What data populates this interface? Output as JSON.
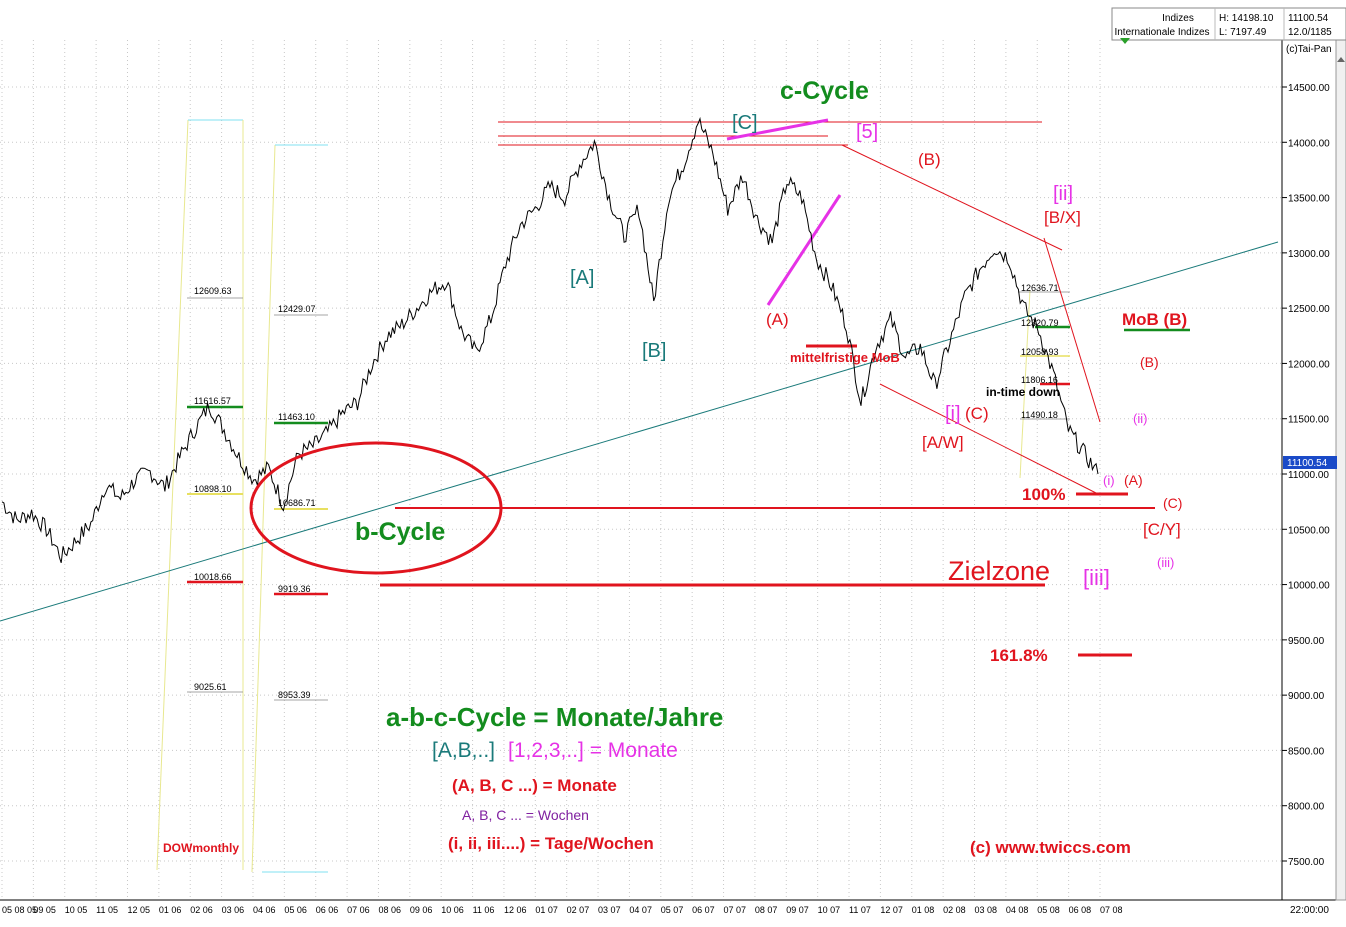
{
  "info_box": {
    "labels": [
      "Indizes",
      "Internationale Indizes"
    ],
    "hl": [
      "H: 14198.10",
      "L: 7197.49"
    ],
    "right": [
      "11100.54",
      "12.0/1185"
    ],
    "copyright": "(c)Tai-Pan"
  },
  "time_bar_right": "22:00:00",
  "chart_data": {
    "type": "line",
    "title": "",
    "xlabel": "",
    "ylabel": "",
    "ylim": [
      7197.49,
      14700
    ],
    "y_ticks": [
      7500,
      8000,
      8500,
      9000,
      9500,
      10000,
      10500,
      11000,
      11500,
      12000,
      12500,
      13000,
      13500,
      14000,
      14500
    ],
    "y_tick_labels": [
      "7500.00",
      "8000.00",
      "8500.00",
      "9000.00",
      "9500.00",
      "10000.00",
      "10500.00",
      "11000.00",
      "11500.00",
      "12000.00",
      "12500.00",
      "13000.00",
      "13500.00",
      "14000.00",
      "14500.00"
    ],
    "x_tick_labels": [
      "05 08 05",
      "09 05",
      "10 05",
      "11 05",
      "12 05",
      "01 06",
      "02 06",
      "03 06",
      "04 06",
      "05 06",
      "06 06",
      "07 06",
      "08 06",
      "09 06",
      "10 06",
      "11 06",
      "12 06",
      "01 07",
      "02 07",
      "03 07",
      "04 07",
      "05 07",
      "06 07",
      "07 07",
      "08 07",
      "09 07",
      "10 07",
      "11 07",
      "12 07",
      "01 08",
      "02 08",
      "03 08",
      "04 08",
      "05 08",
      "06 08",
      "07 08"
    ],
    "last_price": "11100.54",
    "series": [
      {
        "points": [
          [
            0,
            10750
          ],
          [
            1,
            10580
          ],
          [
            2,
            10650
          ],
          [
            3,
            10500
          ],
          [
            4,
            10250
          ],
          [
            5,
            10400
          ],
          [
            6,
            10550
          ],
          [
            7,
            10900
          ],
          [
            8,
            10780
          ],
          [
            9,
            10950
          ],
          [
            10,
            11020
          ],
          [
            11,
            10880
          ],
          [
            12,
            11150
          ],
          [
            13,
            11400
          ],
          [
            14,
            11620
          ],
          [
            15,
            11400
          ],
          [
            16,
            11150
          ],
          [
            17,
            10950
          ],
          [
            18,
            11050
          ],
          [
            19,
            10720
          ],
          [
            20,
            11180
          ],
          [
            21,
            11250
          ],
          [
            22,
            11380
          ],
          [
            23,
            11550
          ],
          [
            24,
            11650
          ],
          [
            25,
            12000
          ],
          [
            26,
            12250
          ],
          [
            27,
            12350
          ],
          [
            28,
            12500
          ],
          [
            29,
            12650
          ],
          [
            30,
            12750
          ],
          [
            31,
            12300
          ],
          [
            32,
            12100
          ],
          [
            33,
            12400
          ],
          [
            34,
            12900
          ],
          [
            35,
            13250
          ],
          [
            36,
            13400
          ],
          [
            37,
            13600
          ],
          [
            38,
            13500
          ],
          [
            39,
            13800
          ],
          [
            40,
            14000
          ],
          [
            41,
            13500
          ],
          [
            42,
            13150
          ],
          [
            43,
            13400
          ],
          [
            44,
            12550
          ],
          [
            45,
            13500
          ],
          [
            46,
            13800
          ],
          [
            47,
            14200
          ],
          [
            48,
            13900
          ],
          [
            49,
            13400
          ],
          [
            50,
            13700
          ],
          [
            51,
            13300
          ],
          [
            52,
            13100
          ],
          [
            53,
            13650
          ],
          [
            54,
            13500
          ],
          [
            55,
            12950
          ],
          [
            56,
            12700
          ],
          [
            57,
            12350
          ],
          [
            58,
            11650
          ],
          [
            59,
            12150
          ],
          [
            60,
            12400
          ],
          [
            61,
            12050
          ],
          [
            62,
            12150
          ],
          [
            63,
            11800
          ],
          [
            64,
            12200
          ],
          [
            65,
            12600
          ],
          [
            66,
            12850
          ],
          [
            67,
            13050
          ],
          [
            68,
            12950
          ],
          [
            69,
            12500
          ],
          [
            70,
            12300
          ],
          [
            71,
            11900
          ],
          [
            72,
            11400
          ],
          [
            73,
            11200
          ],
          [
            74,
            11000
          ]
        ]
      }
    ],
    "annotations": {
      "wave_teal": [
        "[A]",
        "[B]",
        "[C]"
      ],
      "wave_green": [
        "c-Cycle",
        "b-Cycle"
      ],
      "wave_magenta": [
        "[5]",
        "[ii]",
        "[i]",
        "[iii]"
      ],
      "wave_red": [
        "(A)",
        "(B)",
        "[B/X]",
        "[A/W]",
        "(C)",
        "(B)",
        "(A)",
        "(C)",
        "[C/Y]",
        "MoB (B)",
        "mittelfristige MoB",
        "100%",
        "161.8%",
        "Zielzone"
      ],
      "wave_small": [
        "(ii)",
        "(i)",
        "(iii)"
      ],
      "misc": [
        "in-time down",
        "DOWmonthly"
      ]
    },
    "fib_left_1": [
      "12609.63",
      "11616.57",
      "10898.10",
      "10018.66",
      "9025.61"
    ],
    "fib_left_2": [
      "12429.07",
      "11463.10",
      "10686.71",
      "9919.36",
      "8953.39"
    ],
    "fib_right": [
      "12636.71",
      "12320.79",
      "12058.93",
      "11806.16",
      "11490.18"
    ],
    "legend": {
      "line1": "a-b-c-Cycle = Monate/Jahre",
      "line2_a": "[A,B,..]",
      "line2_b": "[1,2,3,..] = Monate",
      "line3": "(A, B, C ...) = Monate",
      "line4": "A, B, C ... = Wochen",
      "line5": "(i, ii, iii....) = Tage/Wochen"
    },
    "credit": "(c)  www.twiccs.com",
    "colors": {
      "red": "#e0141e",
      "teal": "#1a7a7a",
      "green": "#138c1e",
      "magenta": "#e632e6",
      "purple": "#8020a0",
      "price": "#000000"
    }
  }
}
